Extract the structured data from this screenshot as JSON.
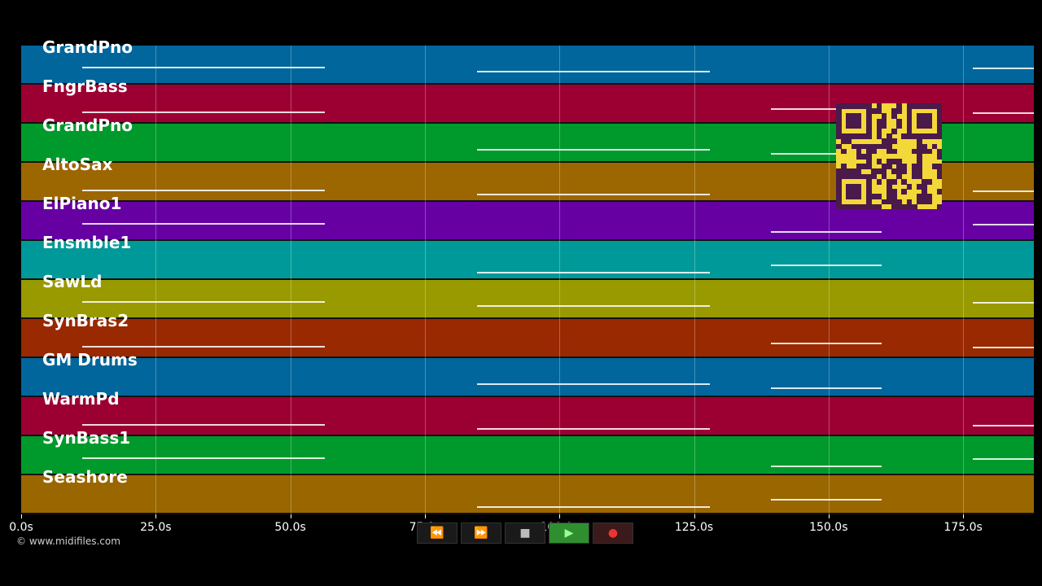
{
  "tracks": [
    {
      "name": "GrandPno",
      "color": "#00669c"
    },
    {
      "name": "FngrBass",
      "color": "#9c0033"
    },
    {
      "name": "GrandPno",
      "color": "#00992b"
    },
    {
      "name": "AltoSax",
      "color": "#9c6600"
    },
    {
      "name": "ElPiano1",
      "color": "#6600a3"
    },
    {
      "name": "Ensmble1",
      "color": "#009999"
    },
    {
      "name": "SawLd",
      "color": "#999900"
    },
    {
      "name": "SynBras2",
      "color": "#992900"
    },
    {
      "name": "GM Drums",
      "color": "#00669c"
    },
    {
      "name": "WarmPd",
      "color": "#9c0033"
    },
    {
      "name": "SynBass1",
      "color": "#00992b"
    },
    {
      "name": "Seashore",
      "color": "#996600"
    }
  ],
  "axis": {
    "ticks": [
      "0.0s",
      "25.0s",
      "50.0s",
      "75.0s",
      "100.0s",
      "125.0s",
      "150.0s",
      "175.0s"
    ]
  },
  "copyright": "© www.midifiles.com",
  "controls": {
    "rewind": "⏪",
    "forward": "⏩",
    "stop": "■",
    "play": "▶",
    "record": "●"
  }
}
